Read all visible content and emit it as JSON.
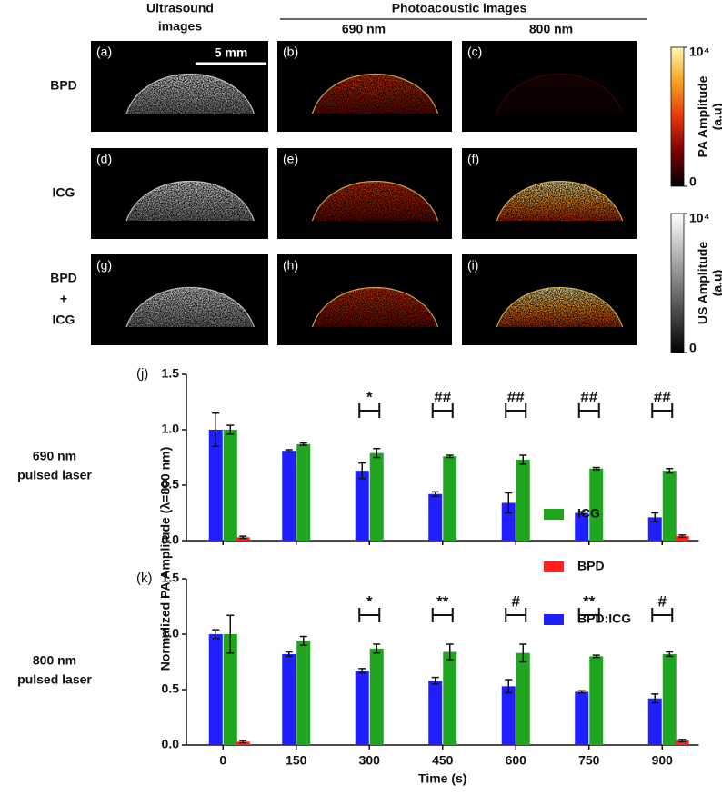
{
  "header": {
    "ultrasound": [
      "Ultrasound",
      "images"
    ],
    "photoacoustic": "Photoacoustic images",
    "wavelengths": [
      "690 nm",
      "800 nm"
    ],
    "scale_bar": "5 mm"
  },
  "rows": [
    [
      "BPD"
    ],
    [
      "ICG"
    ],
    [
      "BPD",
      "+",
      "ICG"
    ]
  ],
  "panels": [
    "(a)",
    "(b)",
    "(c)",
    "(d)",
    "(e)",
    "(f)",
    "(g)",
    "(h)",
    "(i)"
  ],
  "colorbars": [
    {
      "label": [
        "PA Amplitude",
        "(a.u)"
      ],
      "lim": [
        0,
        10000
      ],
      "ticks": [
        0,
        {
          "value": 10000,
          "label": "10⁴"
        }
      ],
      "colors": [
        "#000000",
        "#7a0000",
        "#e8360a",
        "#f7a21a",
        "#fff7b0"
      ]
    },
    {
      "label": [
        "US Amplitude",
        "(a.u)"
      ],
      "lim": [
        0,
        10000
      ],
      "ticks": [
        0,
        {
          "value": 10000,
          "label": "10⁴"
        }
      ],
      "colors": [
        "#000000",
        "#ffffff"
      ]
    }
  ],
  "y_label": "Normalized PA Amplitude (λ=800 nm)",
  "chart_data": [
    {
      "type": "bar",
      "panel_label": "(j)",
      "row_label": [
        "690 nm",
        "pulsed laser"
      ],
      "categories": [
        "0",
        "150",
        "300",
        "450",
        "600",
        "750",
        "900"
      ],
      "series": [
        {
          "name": "BPD:ICG",
          "color": "#1f1fff",
          "values": [
            1.0,
            0.81,
            0.63,
            0.42,
            0.34,
            0.25,
            0.21
          ],
          "errors": [
            0.15,
            0.01,
            0.07,
            0.02,
            0.09,
            0.01,
            0.04
          ]
        },
        {
          "name": "ICG",
          "color": "#1fa51f",
          "values": [
            1.0,
            0.87,
            0.79,
            0.76,
            0.73,
            0.65,
            0.63
          ],
          "errors": [
            0.04,
            0.01,
            0.04,
            0.01,
            0.04,
            0.01,
            0.02
          ]
        },
        {
          "name": "BPD",
          "color": "#ff2020",
          "values": [
            0.03,
            null,
            null,
            null,
            null,
            null,
            0.04
          ],
          "errors": [
            0.01,
            null,
            null,
            null,
            null,
            null,
            0.01
          ]
        }
      ],
      "significance": [
        null,
        null,
        "*",
        "##",
        "##",
        "##",
        "##"
      ],
      "ylim": [
        0,
        1.5
      ],
      "yticks": [
        {
          "value": 0,
          "label": "0.0"
        },
        {
          "value": 0.5,
          "label": "0.5"
        },
        {
          "value": 1,
          "label": "1.0"
        },
        {
          "value": 1.5,
          "label": "1.5"
        }
      ]
    },
    {
      "type": "bar",
      "panel_label": "(k)",
      "row_label": [
        "800 nm",
        "pulsed laser"
      ],
      "x_label": "Time (s)",
      "categories": [
        "0",
        "150",
        "300",
        "450",
        "600",
        "750",
        "900"
      ],
      "series": [
        {
          "name": "BPD:ICG",
          "color": "#1f1fff",
          "values": [
            1.0,
            0.82,
            0.67,
            0.58,
            0.53,
            0.48,
            0.42
          ],
          "errors": [
            0.04,
            0.02,
            0.02,
            0.03,
            0.06,
            0.01,
            0.04
          ]
        },
        {
          "name": "ICG",
          "color": "#1fa51f",
          "values": [
            1.0,
            0.94,
            0.87,
            0.84,
            0.83,
            0.8,
            0.82
          ],
          "errors": [
            0.17,
            0.04,
            0.04,
            0.07,
            0.08,
            0.01,
            0.02
          ]
        },
        {
          "name": "BPD",
          "color": "#ff2020",
          "values": [
            0.03,
            null,
            null,
            null,
            null,
            null,
            0.04
          ],
          "errors": [
            0.01,
            null,
            null,
            null,
            null,
            null,
            0.01
          ]
        }
      ],
      "significance": [
        null,
        null,
        "*",
        "**",
        "#",
        "**",
        "#"
      ],
      "ylim": [
        0,
        1.5
      ],
      "yticks": [
        {
          "value": 0,
          "label": "0.0"
        },
        {
          "value": 0.5,
          "label": "0.5"
        },
        {
          "value": 1,
          "label": "1.0"
        },
        {
          "value": 1.5,
          "label": "1.5"
        }
      ]
    }
  ]
}
